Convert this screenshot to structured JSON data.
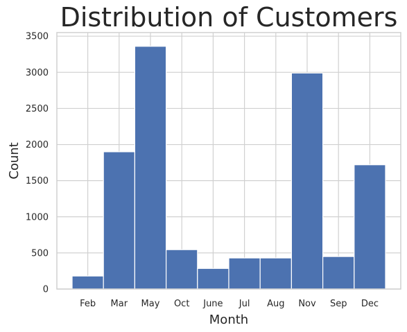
{
  "chart_data": {
    "type": "bar",
    "title": "Distribution of Customers",
    "xlabel": "Month",
    "ylabel": "Count",
    "categories": [
      "Feb",
      "Mar",
      "May",
      "Oct",
      "June",
      "Jul",
      "Aug",
      "Nov",
      "Sep",
      "Dec"
    ],
    "values": [
      180,
      1900,
      3360,
      545,
      285,
      430,
      430,
      2990,
      450,
      1720
    ],
    "ylim": [
      0,
      3550
    ],
    "yticks": [
      0,
      500,
      1000,
      1500,
      2000,
      2500,
      3000,
      3500
    ],
    "grid": true,
    "bar_color": "#4c72b0",
    "grid_color": "#d0d0d0",
    "axes_edge_color": "#d0d0d0"
  }
}
